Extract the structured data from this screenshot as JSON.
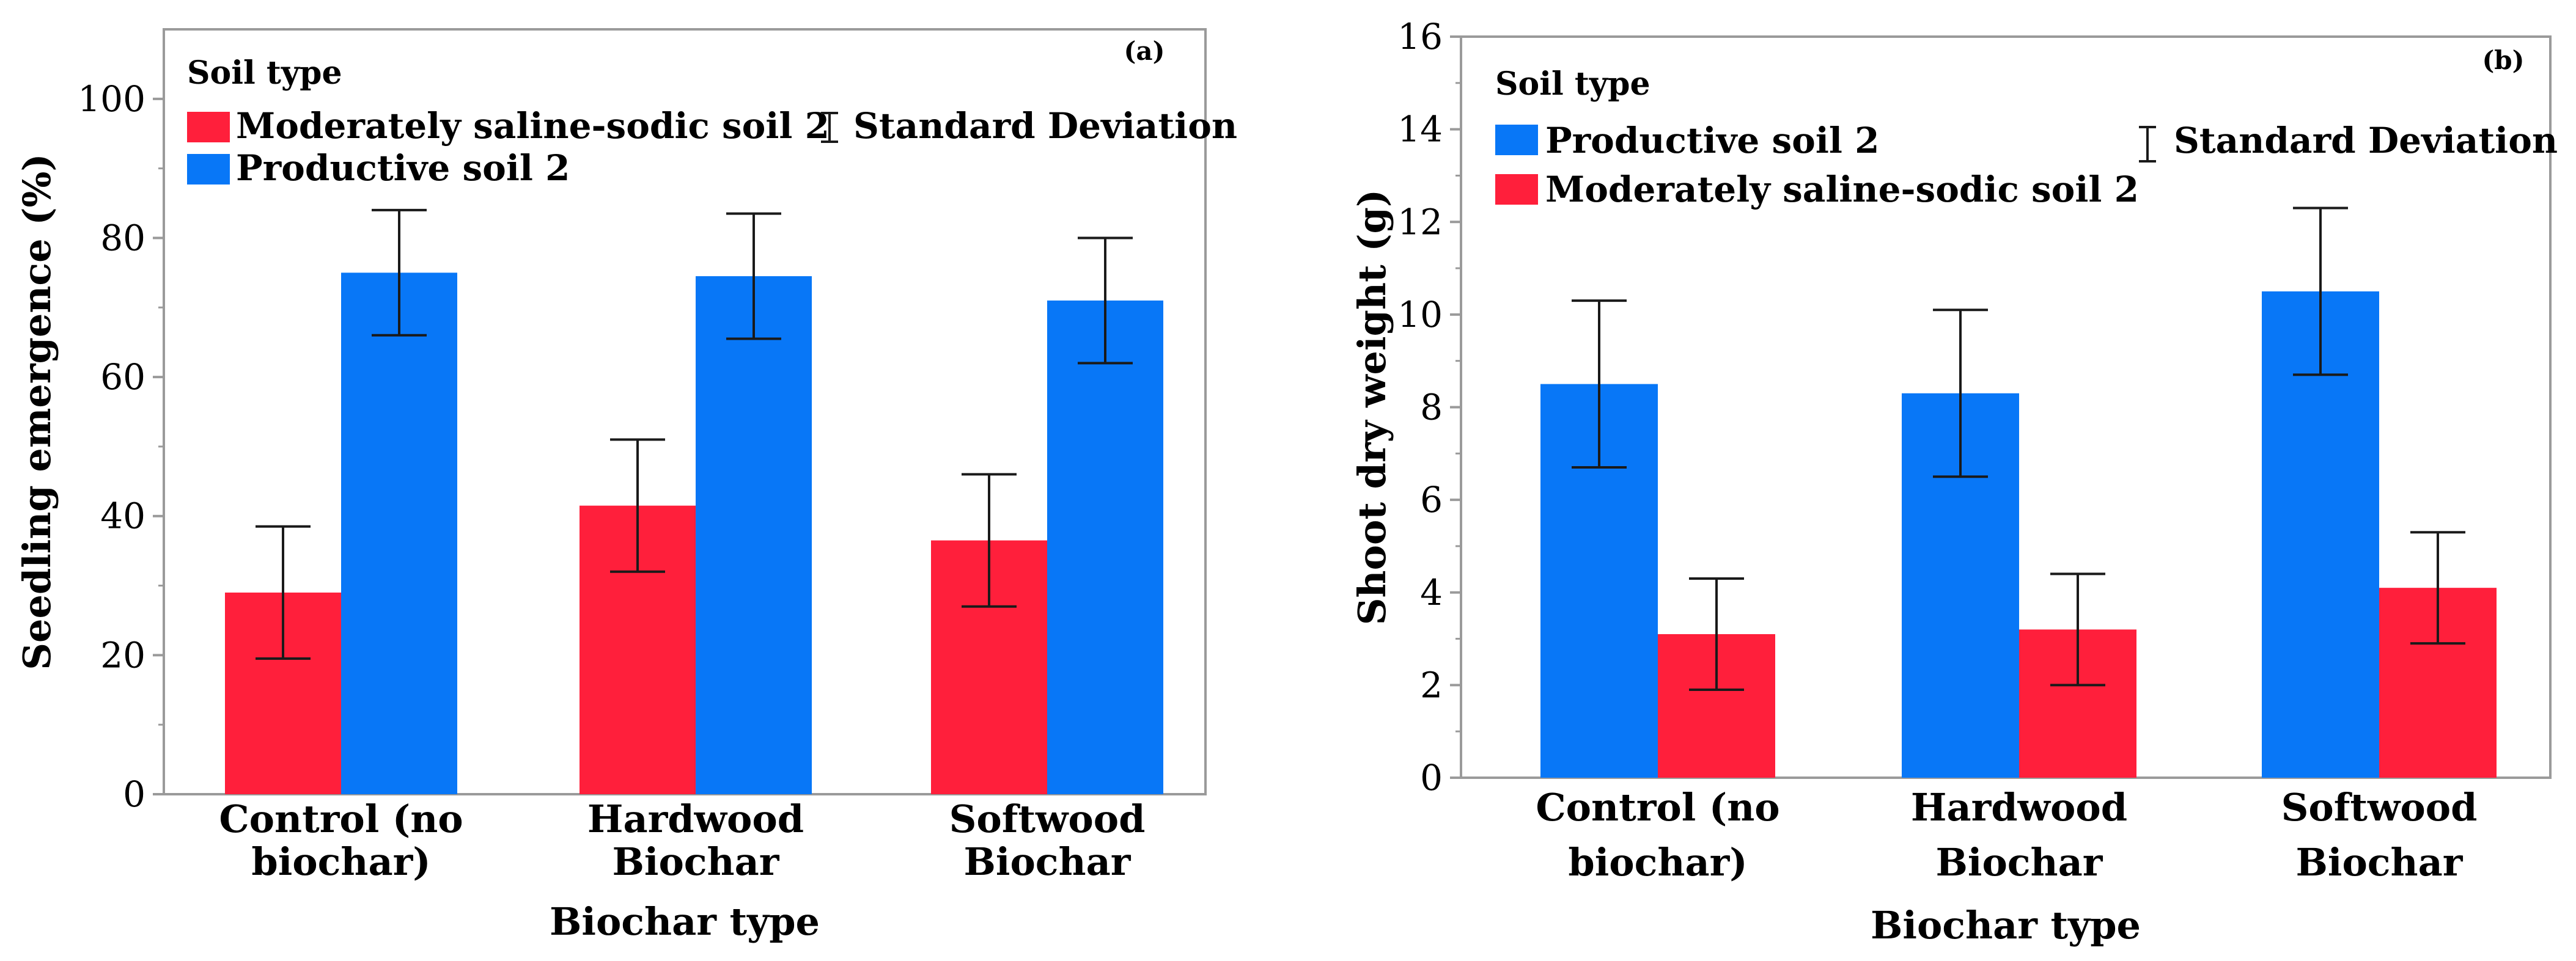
{
  "chart_data": [
    {
      "type": "bar",
      "panel_label": "(a)",
      "xlabel": "Biochar type",
      "ylabel": "Seedling emergence (%)",
      "ylim": [
        0,
        110
      ],
      "yticks": [
        0,
        20,
        40,
        60,
        80,
        100
      ],
      "grid": false,
      "legend_title": "Soil type",
      "legend_position": "top-left",
      "error_legend_label": "Standard Deviation",
      "categories": [
        [
          "Control (no",
          "biochar)"
        ],
        [
          "Hardwood",
          "Biochar"
        ],
        [
          "Softwood",
          "Biochar"
        ]
      ],
      "series": [
        {
          "name": "Moderately saline-sodic soil 2",
          "color": "#ff1f3b",
          "values": [
            29,
            41.5,
            36.5
          ],
          "errors": [
            9.5,
            9.5,
            9.5
          ]
        },
        {
          "name": "Productive soil 2",
          "color": "#0877f7",
          "values": [
            75,
            74.5,
            71
          ],
          "errors": [
            9,
            9,
            9
          ]
        }
      ]
    },
    {
      "type": "bar",
      "panel_label": "(b)",
      "xlabel": "Biochar type",
      "ylabel": "Shoot dry weight (g)",
      "ylim": [
        0,
        16
      ],
      "yticks": [
        0,
        2,
        4,
        6,
        8,
        10,
        12,
        14,
        16
      ],
      "grid": false,
      "legend_title": "Soil type",
      "legend_position": "top-left",
      "error_legend_label": "Standard Deviation",
      "categories": [
        [
          "Control (no",
          "biochar)"
        ],
        [
          "Hardwood",
          "Biochar"
        ],
        [
          "Softwood",
          "Biochar"
        ]
      ],
      "series": [
        {
          "name": "Productive soil 2",
          "color": "#0877f7",
          "values": [
            8.5,
            8.3,
            10.5
          ],
          "errors": [
            1.8,
            1.8,
            1.8
          ]
        },
        {
          "name": "Moderately saline-sodic soil 2",
          "color": "#ff1f3b",
          "values": [
            3.1,
            3.2,
            4.1
          ],
          "errors": [
            1.2,
            1.2,
            1.2
          ]
        }
      ]
    }
  ]
}
